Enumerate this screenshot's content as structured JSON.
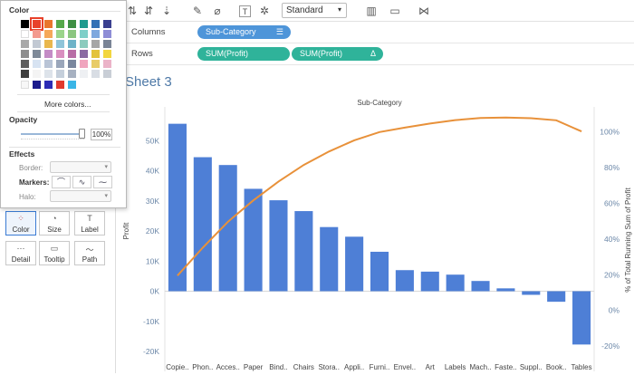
{
  "toolbar": {
    "dropdown_value": "Standard",
    "icons": [
      "sort-ascending-icon",
      "sort-descending-icon",
      "highlight-pen-icon",
      "paperclip-icon",
      "text-box-icon",
      "pin-icon",
      "show-me-icon",
      "presentation-icon",
      "share-icon"
    ]
  },
  "shelves": {
    "columns": {
      "label": "Columns",
      "pill": "Sub-Category",
      "pill_color": "#4e95d9"
    },
    "rows": {
      "label": "Rows",
      "pills": [
        {
          "text": "SUM(Profit)",
          "icon": ""
        },
        {
          "text": "SUM(Profit)",
          "icon": "Δ"
        }
      ],
      "pill_color": "#2fb39a"
    }
  },
  "color_popup": {
    "color_title": "Color",
    "more_colors": "More colors...",
    "opacity_title": "Opacity",
    "opacity_value": "100%",
    "effects_title": "Effects",
    "border_label": "Border:",
    "markers_label": "Markers:",
    "halo_label": "Halo:",
    "palette": [
      [
        "#000000",
        "#e8412a",
        "#e8762c",
        "#56a84b",
        "#3e8f44",
        "#1f9a8e",
        "#3371b5",
        "#3a3f8f"
      ],
      [
        "#ffffff",
        "#f39a8f",
        "#f5a85a",
        "#9bd48b",
        "#8bc680",
        "#7ecfc8",
        "#7ea8de",
        "#8e8dd6"
      ],
      [
        "#a9a9a9",
        "#c2c9d3",
        "#e9b74e",
        "#8fc4d9",
        "#6fb3c8",
        "#8bcbbe",
        "#a6a6a6",
        "#7a8496"
      ],
      [
        "#8d8d8d",
        "#7f8a99",
        "#c48cc6",
        "#d98fc0",
        "#b86ea6",
        "#8a6aa2",
        "#e3c33c",
        "#f2d640"
      ],
      [
        "#5f5f5f",
        "#d7e3f2",
        "#b9c4d6",
        "#9aa6ba",
        "#7a879e",
        "#f0a5be",
        "#e8cc68",
        "#ebb3c8"
      ],
      [
        "#3f3f3f",
        "#f4f4f4",
        "#dde3ea",
        "#c5cfdb",
        "#a7b1c1",
        "#eef0f3",
        "#d8dde4",
        "#c9ced6"
      ]
    ],
    "recent": [
      "#f7f7f7",
      "#1a1a8c",
      "#2c2cb5",
      "#e03a2e",
      "#3ab5e6"
    ]
  },
  "marks_cards": [
    {
      "label": "Color",
      "icon": "color-icon",
      "glyph": "⁘"
    },
    {
      "label": "Size",
      "icon": "size-icon",
      "glyph": "◔"
    },
    {
      "label": "Label",
      "icon": "label-icon",
      "glyph": "T"
    },
    {
      "label": "Detail",
      "icon": "detail-icon",
      "glyph": "⋯"
    },
    {
      "label": "Tooltip",
      "icon": "tooltip-icon",
      "glyph": "▭"
    },
    {
      "label": "Path",
      "icon": "path-icon",
      "glyph": "〜"
    }
  ],
  "sheet": {
    "title": "Sheet 3"
  },
  "chart_data": {
    "type": "bar",
    "title": "Sub-Category",
    "ylabel": "Profit",
    "y2label": "% of Total Running Sum of Profit",
    "categories": [
      "Copie..",
      "Phon..",
      "Acces..",
      "Paper",
      "Bind..",
      "Chairs",
      "Stora..",
      "Appli..",
      "Furni..",
      "Envel..",
      "Art",
      "Labels",
      "Mach..",
      "Faste..",
      "Suppl..",
      "Book..",
      "Tables"
    ],
    "values": [
      55600,
      44500,
      41900,
      34000,
      30200,
      26600,
      21300,
      18100,
      13100,
      7000,
      6500,
      5500,
      3400,
      950,
      -1200,
      -3500,
      -17700
    ],
    "ylim": [
      -20000,
      60000
    ],
    "yticks": [
      -20000,
      -10000,
      0,
      10000,
      20000,
      30000,
      40000,
      50000
    ],
    "ytick_labels": [
      "-20K",
      "-10K",
      "0K",
      "10K",
      "20K",
      "30K",
      "40K",
      "50K"
    ],
    "series2": {
      "name": "% of Total Running Sum of Profit",
      "values": [
        19.5,
        35.1,
        49.7,
        61.6,
        72.2,
        81.5,
        89.0,
        95.3,
        99.9,
        102.4,
        104.7,
        106.6,
        107.8,
        108.1,
        107.7,
        106.5,
        100.3
      ]
    },
    "y2lim": [
      -23,
      112
    ],
    "y2ticks": [
      -20,
      0,
      20,
      40,
      60,
      80,
      100
    ],
    "y2tick_labels": [
      "-20%",
      "0%",
      "20%",
      "40%",
      "60%",
      "80%",
      "100%"
    ],
    "bar_color": "#4e7fd6",
    "line_color": "#e8913a",
    "grid": false
  }
}
